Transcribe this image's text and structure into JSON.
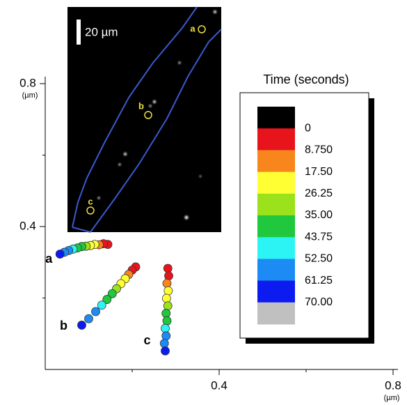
{
  "chart_data": {
    "type": "scatter",
    "xlabel": "(µm)",
    "ylabel": "(µm)",
    "xlim": [
      0,
      0.8
    ],
    "ylim": [
      0,
      0.8
    ],
    "xticks": [
      0.4,
      0.8
    ],
    "yticks": [
      0.4,
      0.8
    ],
    "xminor": [
      0.2,
      0.6
    ],
    "yminor": [
      0.2,
      0.6
    ],
    "series": [
      {
        "name": "a",
        "x": [
          0.144,
          0.134,
          0.124,
          0.114,
          0.104,
          0.094,
          0.084,
          0.074,
          0.064,
          0.054,
          0.044,
          0.034
        ],
        "values": [
          0.35,
          0.352,
          0.349,
          0.35,
          0.347,
          0.345,
          0.344,
          0.34,
          0.337,
          0.333,
          0.328,
          0.323
        ]
      },
      {
        "name": "b",
        "x": [
          0.208,
          0.2,
          0.192,
          0.184,
          0.174,
          0.164,
          0.154,
          0.142,
          0.13,
          0.116,
          0.1,
          0.084
        ],
        "values": [
          0.287,
          0.278,
          0.266,
          0.254,
          0.24,
          0.226,
          0.212,
          0.196,
          0.18,
          0.162,
          0.142,
          0.124
        ]
      },
      {
        "name": "c",
        "x": [
          0.282,
          0.284,
          0.28,
          0.283,
          0.279,
          0.282,
          0.278,
          0.28,
          0.276,
          0.278,
          0.274,
          0.276
        ],
        "values": [
          0.283,
          0.262,
          0.241,
          0.22,
          0.199,
          0.178,
          0.157,
          0.136,
          0.115,
          0.094,
          0.073,
          0.052
        ]
      }
    ],
    "colorbar": {
      "title": "Time (seconds)",
      "colors": [
        "#000000",
        "#e8141c",
        "#f7861c",
        "#ffff33",
        "#9be21c",
        "#1fc83c",
        "#2cf4f4",
        "#1c8cf4",
        "#0c1cf0",
        "#c0c0c0"
      ],
      "ticks": [
        0,
        {
          "value": 8.75,
          "label": "8.750"
        },
        {
          "value": 17.5,
          "label": "17.50"
        },
        26.25,
        {
          "value": 35,
          "label": "35.00"
        },
        43.75,
        {
          "value": 52.5,
          "label": "52.50"
        },
        61.25,
        {
          "value": 70,
          "label": "70.00"
        }
      ]
    },
    "inset": {
      "scale_label": "20 µm",
      "spot_labels": [
        "a",
        "b",
        "c"
      ]
    }
  }
}
